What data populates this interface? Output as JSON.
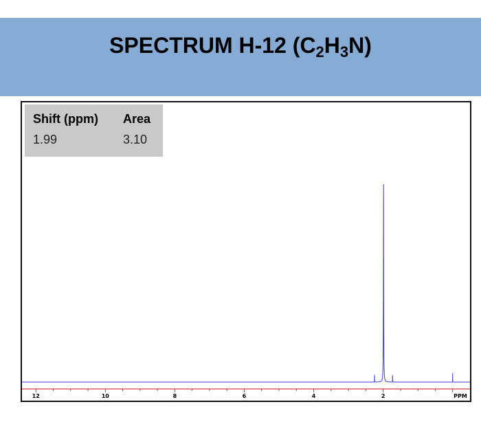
{
  "header": {
    "title_parts": [
      "SPECTRUM H-12 (C",
      "2",
      "H",
      "3",
      "N)"
    ]
  },
  "peak_table": {
    "headers": [
      "Shift (ppm)",
      "Area"
    ],
    "rows": [
      [
        "1.99",
        "3.10"
      ]
    ]
  },
  "colors": {
    "banner": "#86acd6",
    "spectrum": "#3b3bd6",
    "baseline_ruler": "#e06060",
    "table_bg": "#c9c9c9"
  },
  "chart_data": {
    "type": "line",
    "title": "",
    "xlabel": "PPM",
    "ylabel": "",
    "x_reversed": true,
    "xlim": [
      12.4,
      -0.5
    ],
    "ylim": [
      0,
      1
    ],
    "x_ticks": [
      "12",
      "10",
      "8",
      "6",
      "4",
      "2",
      "PPM"
    ],
    "x_tick_values": [
      12,
      10,
      8,
      6,
      4,
      2,
      0
    ],
    "series": [
      {
        "peaks": [
          {
            "shift": 1.99,
            "height": 1.0,
            "width": 0.03
          },
          {
            "shift": 2.25,
            "height": 0.035,
            "width": 0.01
          },
          {
            "shift": 1.73,
            "height": 0.035,
            "width": 0.01
          },
          {
            "shift": 0.0,
            "height": 0.045,
            "width": 0.008
          }
        ]
      }
    ],
    "grid": false
  }
}
